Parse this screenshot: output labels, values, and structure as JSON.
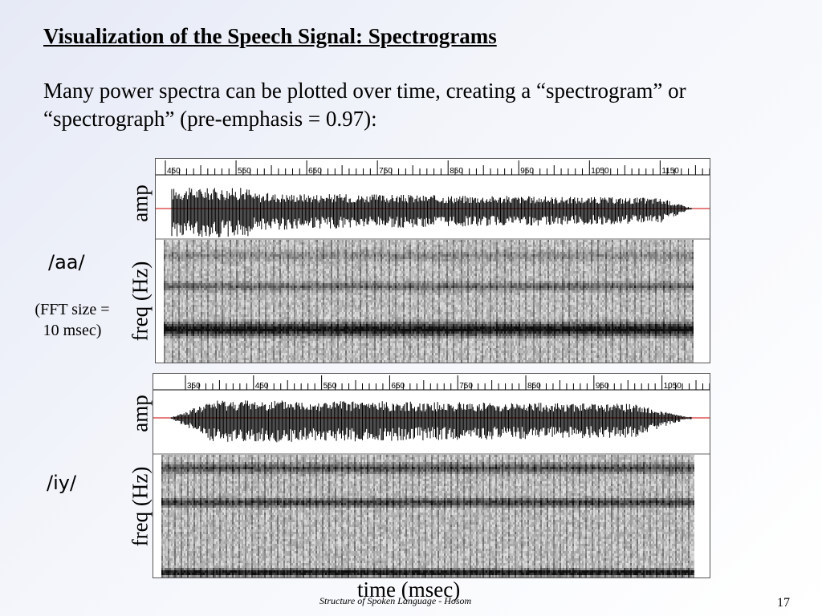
{
  "slide": {
    "title": "Visualization of the Speech Signal: Spectrograms",
    "body": "Many power spectra can be plotted over time, creating a “spectrogram” or “spectrograph” (pre-emphasis = 0.97):",
    "fft_note_line1": "(FFT size =",
    "fft_note_line2": "10 msec)",
    "x_axis_label": "time (msec)",
    "footer": "Structure of Spoken Language - Hosom",
    "page_number": "17"
  },
  "panels": [
    {
      "phoneme": "/aa/",
      "amp_label": "amp",
      "freq_label": "freq (Hz)",
      "ticks": [
        "450",
        "550",
        "650",
        "750",
        "850",
        "950",
        "1050",
        "1150"
      ]
    },
    {
      "phoneme": "/iy/",
      "amp_label": "amp",
      "freq_label": "freq (Hz)",
      "ticks": [
        "350",
        "450",
        "550",
        "650",
        "750",
        "850",
        "950",
        "1050"
      ]
    }
  ]
}
